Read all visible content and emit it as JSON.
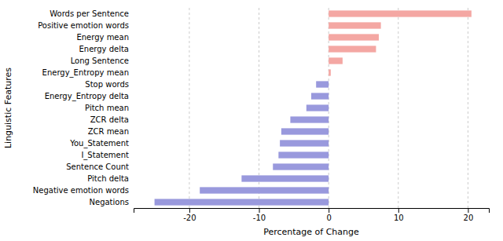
{
  "chart_data": {
    "type": "bar",
    "orientation": "horizontal",
    "xlabel": "Percentage of Change",
    "ylabel": "Linguistic Features",
    "categories": [
      "Negations",
      "Negative emotion words",
      "Pitch delta",
      "Sentence Count",
      "I_Statement",
      "You_Statement",
      "ZCR mean",
      "ZCR delta",
      "Pitch mean",
      "Energy_Entropy delta",
      "Stop words",
      "Energy_Entropy mean",
      "Long Sentence",
      "Energy delta",
      "Energy mean",
      "Positive emotion words",
      "Words per Sentence"
    ],
    "values": [
      -25.0,
      -18.5,
      -12.5,
      -8.0,
      -7.2,
      -7.0,
      -6.8,
      -5.5,
      -3.2,
      -2.5,
      -1.8,
      0.3,
      2.0,
      6.8,
      7.2,
      7.5,
      20.5
    ],
    "colors": [
      "#9999dd",
      "#9999dd",
      "#9999dd",
      "#9999dd",
      "#9999dd",
      "#9999dd",
      "#9999dd",
      "#9999dd",
      "#9999dd",
      "#9999dd",
      "#9999dd",
      "#f4a7a3",
      "#f4a7a3",
      "#f4a7a3",
      "#f4a7a3",
      "#f4a7a3",
      "#f4a7a3"
    ],
    "xlim": [
      -28,
      23
    ],
    "xticks": [
      -20,
      -10,
      0,
      10,
      20
    ],
    "grid": true
  }
}
